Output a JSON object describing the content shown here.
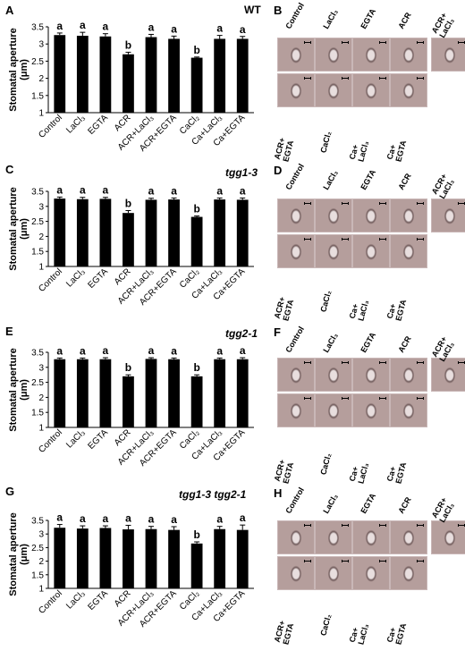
{
  "panels": [
    {
      "letter": "A",
      "genotype": "WT"
    },
    {
      "letter": "C",
      "genotype": "tgg1-3"
    },
    {
      "letter": "E",
      "genotype": "tgg2-1"
    },
    {
      "letter": "G",
      "genotype": "tgg1-3 tgg2-1"
    }
  ],
  "photo_panels": [
    "B",
    "D",
    "F",
    "H"
  ],
  "photo_labels": {
    "top": [
      "Control",
      "LaCl₃",
      "EGTA",
      "ACR",
      "ACR+\nLaCl₃"
    ],
    "bottom": [
      "ACR+\nEGTA",
      "CaCl₂",
      "Ca+\nLaCl₃",
      "Ca+\nEGTA"
    ]
  },
  "colors": {
    "bar": "#000000",
    "photo_bg": "#b59e9c",
    "photo_dark": "#8f7676"
  },
  "chart_data": [
    {
      "type": "bar",
      "title": "WT",
      "ylabel": "Stomatal aperture (μm)",
      "ylim": [
        1,
        3.5
      ],
      "yticks": [
        "1",
        "1.5",
        "2",
        "2.5",
        "3",
        "3.5"
      ],
      "categories": [
        "Control",
        "LaCl₃",
        "EGTA",
        "ACR",
        "ACR+LaCl₃",
        "ACR+EGTA",
        "CaCl₂",
        "Ca+LaCl₃",
        "Ca+EGTA"
      ],
      "values": [
        3.26,
        3.24,
        3.22,
        2.7,
        3.2,
        3.15,
        2.6,
        3.15,
        3.15
      ],
      "errors": [
        0.06,
        0.1,
        0.08,
        0.06,
        0.08,
        0.08,
        0.02,
        0.1,
        0.07
      ],
      "letters": [
        "a",
        "a",
        "a",
        "b",
        "a",
        "a",
        "b",
        "a",
        "a"
      ]
    },
    {
      "type": "bar",
      "title": "tgg1-3",
      "ylabel": "Stomatal aperture (μm)",
      "ylim": [
        1,
        3.5
      ],
      "yticks": [
        "1",
        "1.5",
        "2",
        "2.5",
        "3",
        "3.5"
      ],
      "categories": [
        "Control",
        "LaCl₃",
        "EGTA",
        "ACR",
        "ACR+LaCl₃",
        "ACR+EGTA",
        "CaCl₂",
        "Ca+LaCl₃",
        "Ca+EGTA"
      ],
      "values": [
        3.26,
        3.24,
        3.25,
        2.78,
        3.22,
        3.23,
        2.65,
        3.23,
        3.22
      ],
      "errors": [
        0.05,
        0.06,
        0.05,
        0.08,
        0.05,
        0.05,
        0.03,
        0.05,
        0.06
      ],
      "letters": [
        "a",
        "a",
        "a",
        "b",
        "a",
        "a",
        "b",
        "a",
        "a"
      ]
    },
    {
      "type": "bar",
      "title": "tgg2-1",
      "ylabel": "Stomatal aperture (μm)",
      "ylim": [
        1,
        3.5
      ],
      "yticks": [
        "1",
        "1.5",
        "2",
        "2.5",
        "3",
        "3.5"
      ],
      "categories": [
        "Control",
        "LaCl₃",
        "EGTA",
        "ACR",
        "ACR+LaCl₃",
        "ACR+EGTA",
        "CaCl₂",
        "Ca+LaCl₃",
        "Ca+EGTA"
      ],
      "values": [
        3.27,
        3.27,
        3.27,
        2.7,
        3.28,
        3.27,
        2.7,
        3.27,
        3.27
      ],
      "errors": [
        0.04,
        0.04,
        0.05,
        0.05,
        0.04,
        0.04,
        0.05,
        0.04,
        0.05
      ],
      "letters": [
        "a",
        "a",
        "a",
        "b",
        "a",
        "a",
        "b",
        "a",
        "a"
      ]
    },
    {
      "type": "bar",
      "title": "tgg1-3 tgg2-1",
      "ylabel": "Stomatal aperture (μm)",
      "ylim": [
        1,
        3.5
      ],
      "yticks": [
        "1",
        "1.5",
        "2",
        "2.5",
        "3",
        "3.5"
      ],
      "categories": [
        "Control",
        "LaCl₃",
        "EGTA",
        "ACR",
        "ACR+LaCl₃",
        "ACR+EGTA",
        "CaCl₂",
        "Ca+LaCl₃",
        "Ca+EGTA"
      ],
      "values": [
        3.23,
        3.2,
        3.22,
        3.17,
        3.18,
        3.15,
        2.65,
        3.18,
        3.15
      ],
      "errors": [
        0.12,
        0.1,
        0.08,
        0.15,
        0.1,
        0.12,
        0.06,
        0.1,
        0.18
      ],
      "letters": [
        "a",
        "a",
        "a",
        "a",
        "a",
        "a",
        "b",
        "a",
        "a"
      ]
    }
  ]
}
